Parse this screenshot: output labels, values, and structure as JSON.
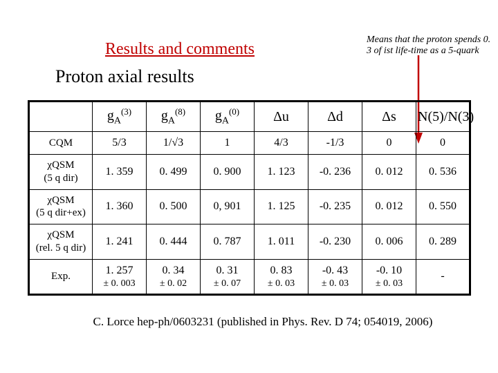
{
  "title": "Results and comments",
  "subtitle": "Proton axial results",
  "annotation": "Means that the proton spends 0. 3 of ist life-time as a 5-quark",
  "citation": "C. Lorce hep-ph/0603231 (published in Phys. Rev. D 74; 054019, 2006)",
  "columns": [
    {
      "label_html": ""
    },
    {
      "base": "g",
      "sub": "A",
      "sup": "(3)"
    },
    {
      "base": "g",
      "sub": "A",
      "sup": "(8)"
    },
    {
      "base": "g",
      "sub": "A",
      "sup": "(0)"
    },
    {
      "plain": "Δu"
    },
    {
      "plain": "Δd"
    },
    {
      "plain": "Δs"
    },
    {
      "nratio": true
    }
  ],
  "rows": [
    {
      "label": "CQM",
      "cells": [
        "5/3",
        "1/√3",
        "1",
        "4/3",
        "-1/3",
        "0",
        "0"
      ]
    },
    {
      "label": "χQSM\n(5 q dir)",
      "cells": [
        "1. 359",
        "0. 499",
        "0. 900",
        "1. 123",
        "-0. 236",
        "0. 012",
        "0. 536"
      ]
    },
    {
      "label": "χQSM\n(5 q dir+ex)",
      "cells": [
        "1. 360",
        "0. 500",
        "0, 901",
        "1. 125",
        "-0. 235",
        "0. 012",
        "0. 550"
      ]
    },
    {
      "label": "χQSM\n(rel. 5 q dir)",
      "cells": [
        "1. 241",
        "0. 444",
        "0. 787",
        "1. 011",
        "-0. 230",
        "0. 006",
        "0. 289"
      ]
    },
    {
      "label": "Exp.",
      "cells": [
        {
          "v": "1. 257",
          "pm": "± 0. 003"
        },
        {
          "v": "0. 34",
          "pm": "± 0. 02"
        },
        {
          "v": "0. 31",
          "pm": "± 0. 07"
        },
        {
          "v": "0. 83",
          "pm": "± 0. 03"
        },
        {
          "v": "-0. 43",
          "pm": "± 0. 03"
        },
        {
          "v": "-0. 10",
          "pm": "± 0. 03"
        },
        {
          "v": "-",
          "pm": ""
        }
      ]
    }
  ],
  "style": {
    "title_color": "#c00000",
    "text_color": "#000000",
    "arrow_color": "#c00000",
    "background": "#ffffff",
    "border_color": "#000000",
    "title_fontsize": 24,
    "subtitle_fontsize": 26,
    "header_fontsize": 20,
    "cell_fontsize": 16,
    "annotation_fontsize": 14,
    "citation_fontsize": 17
  },
  "n_glyph": "N"
}
